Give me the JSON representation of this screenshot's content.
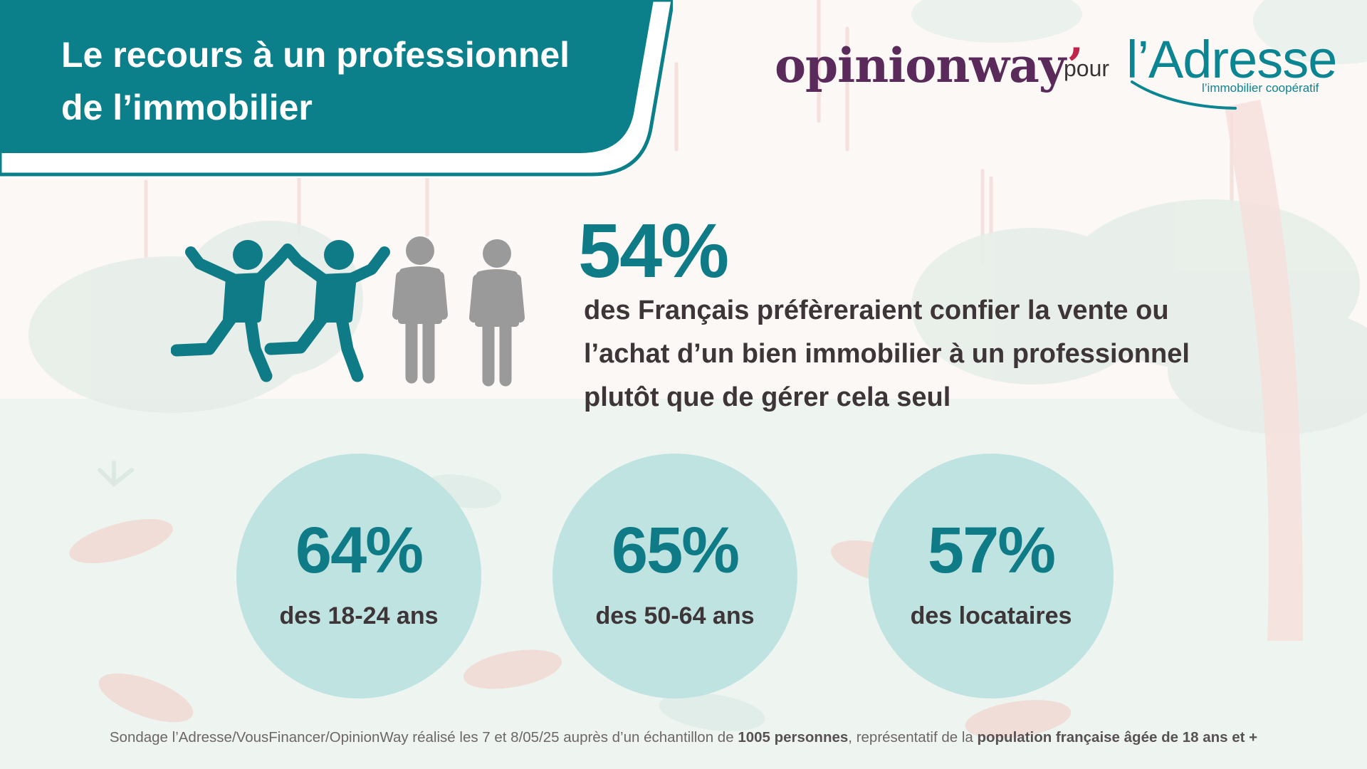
{
  "header": {
    "title_line1": "Le recours à un professionnel",
    "title_line2": "de l’immobilier"
  },
  "logos": {
    "opinionway": "opinionway",
    "opinionway_apostrophe": "’",
    "pour": "pour",
    "adresse": "l’Adresse",
    "adresse_tagline": "l’immobilier coopératif"
  },
  "headline": {
    "percent": "54%",
    "line1": "des Français préfèreraient confier la vente ou",
    "line2": "l’achat d’un bien immobilier à un professionnel",
    "line3": "plutôt que de gérer cela seul"
  },
  "stats": [
    {
      "percent": "64%",
      "label": "des 18-24 ans"
    },
    {
      "percent": "65%",
      "label": "des 50-64 ans"
    },
    {
      "percent": "57%",
      "label": "des locataires"
    }
  ],
  "footer": {
    "part1": "Sondage l’Adresse/VousFinancer/OpinionWay réalisé les 7 et 8/05/25 auprès d’un échantillon de ",
    "bold1": "1005 personnes",
    "part2": ", représentatif de la ",
    "bold2": "population française âgée de 18 ans et +"
  },
  "colors": {
    "teal": "#0e7b86",
    "banner": "#0b7f8a",
    "circle": "#bfe3e1",
    "text_dark": "#3d3537",
    "grey_person": "#9a9a9a",
    "opinionway_purple": "#5a2a5b",
    "opinionway_accent": "#c0244a"
  },
  "icons": {
    "people": [
      "jumping-person-icon",
      "jumping-person-icon",
      "standing-person-icon",
      "standing-person-icon"
    ]
  }
}
